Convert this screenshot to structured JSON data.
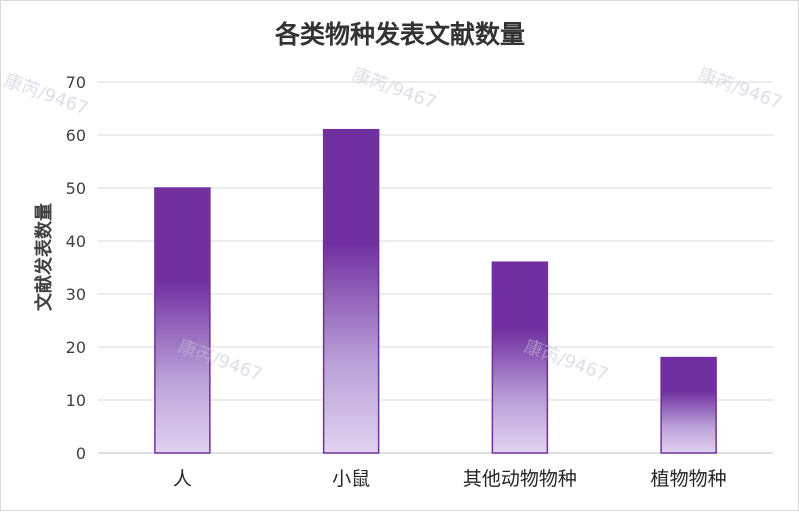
{
  "chart_data": {
    "type": "bar",
    "title": "各类物种发表文献数量",
    "xlabel": "",
    "ylabel": "文献发表数量",
    "categories": [
      "人",
      "小鼠",
      "其他动物物种",
      "植物物种"
    ],
    "values": [
      50,
      61,
      36,
      18
    ],
    "ylim": [
      0,
      70
    ],
    "yticks": [
      0,
      10,
      20,
      30,
      40,
      50,
      60,
      70
    ],
    "grid": true,
    "legend": "none",
    "colors": {
      "bar_top": "#7030a0",
      "bar_bottom": "#e2d2f0",
      "bar_edge": "#7030a0",
      "grid": "#d9d9d9",
      "axis": "#bfbfbf"
    }
  },
  "watermark": "康芮/9467"
}
